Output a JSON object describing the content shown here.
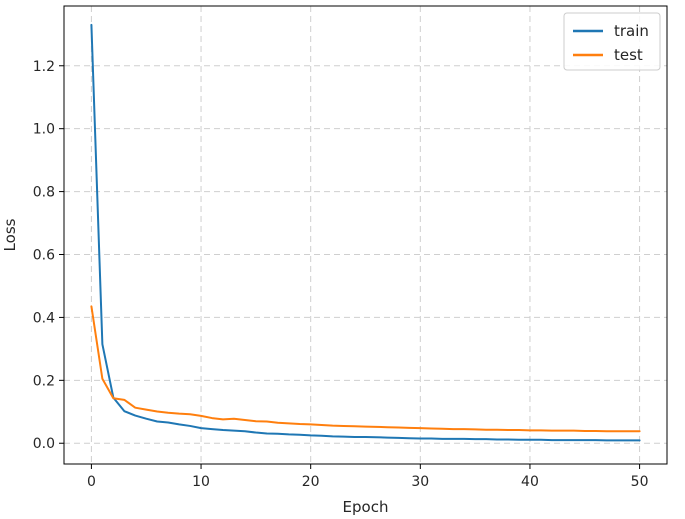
{
  "chart_data": {
    "type": "line",
    "xlabel": "Epoch",
    "ylabel": "Loss",
    "xlim": [
      -2.5,
      52.5
    ],
    "ylim": [
      -0.066,
      1.39
    ],
    "xticks": [
      0,
      10,
      20,
      30,
      40,
      50
    ],
    "xtick_labels": [
      "0",
      "10",
      "20",
      "30",
      "40",
      "50"
    ],
    "yticks": [
      0.0,
      0.2,
      0.4,
      0.6,
      0.8,
      1.0,
      1.2
    ],
    "ytick_labels": [
      "0.0",
      "0.2",
      "0.4",
      "0.6",
      "0.8",
      "1.0",
      "1.2"
    ],
    "grid": true,
    "legend_position": "top-right",
    "x": [
      0,
      1,
      2,
      3,
      4,
      5,
      6,
      7,
      8,
      9,
      10,
      11,
      12,
      13,
      14,
      15,
      16,
      17,
      18,
      19,
      20,
      21,
      22,
      23,
      24,
      25,
      26,
      27,
      28,
      29,
      30,
      31,
      32,
      33,
      34,
      35,
      36,
      37,
      38,
      39,
      40,
      41,
      42,
      43,
      44,
      45,
      46,
      47,
      48,
      49,
      50
    ],
    "series": [
      {
        "name": "train",
        "color": "#1f77b4",
        "values": [
          1.33,
          0.315,
          0.145,
          0.102,
          0.088,
          0.078,
          0.069,
          0.066,
          0.06,
          0.055,
          0.048,
          0.045,
          0.042,
          0.04,
          0.038,
          0.034,
          0.031,
          0.03,
          0.028,
          0.027,
          0.025,
          0.024,
          0.022,
          0.021,
          0.02,
          0.02,
          0.019,
          0.018,
          0.017,
          0.016,
          0.015,
          0.015,
          0.014,
          0.014,
          0.014,
          0.013,
          0.013,
          0.012,
          0.012,
          0.011,
          0.011,
          0.011,
          0.01,
          0.01,
          0.01,
          0.01,
          0.01,
          0.009,
          0.009,
          0.009,
          0.009
        ]
      },
      {
        "name": "test",
        "color": "#ff7f0e",
        "values": [
          0.435,
          0.205,
          0.143,
          0.138,
          0.113,
          0.107,
          0.101,
          0.097,
          0.094,
          0.092,
          0.087,
          0.08,
          0.076,
          0.078,
          0.074,
          0.07,
          0.069,
          0.065,
          0.063,
          0.061,
          0.06,
          0.058,
          0.056,
          0.055,
          0.054,
          0.053,
          0.052,
          0.051,
          0.05,
          0.049,
          0.048,
          0.047,
          0.046,
          0.045,
          0.045,
          0.044,
          0.043,
          0.043,
          0.042,
          0.042,
          0.041,
          0.041,
          0.04,
          0.04,
          0.04,
          0.039,
          0.039,
          0.038,
          0.038,
          0.038,
          0.038
        ]
      }
    ]
  }
}
